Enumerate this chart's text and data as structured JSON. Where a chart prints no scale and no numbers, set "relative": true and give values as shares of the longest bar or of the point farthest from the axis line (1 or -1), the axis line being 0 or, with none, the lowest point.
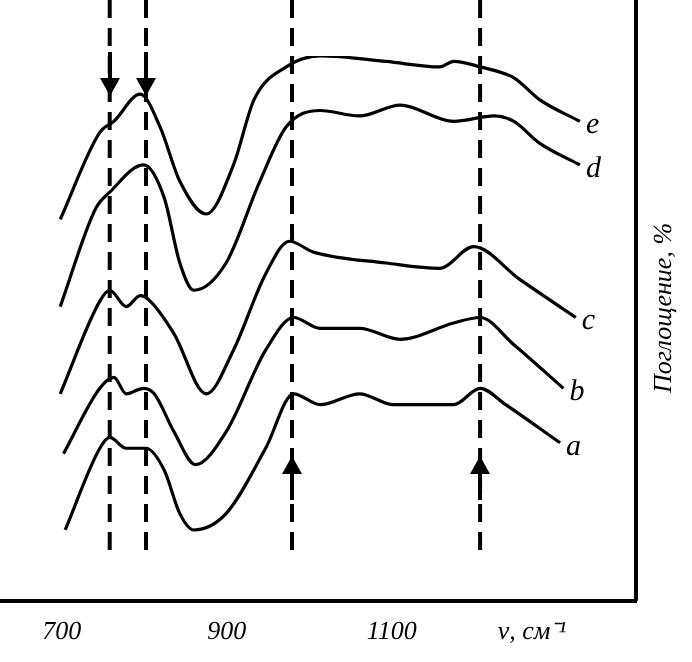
{
  "chart_data": {
    "type": "line",
    "relative": true,
    "xlabel": "ν, см⁻¹",
    "ylabel": "Поглощение, %",
    "xlim": [
      625,
      1396
    ],
    "xticks": [
      700,
      900,
      1100
    ],
    "legend": false,
    "grid": false,
    "marker": "none",
    "series": [
      {
        "name": "e",
        "color": "#000000",
        "x": [
          698,
          746,
          763,
          795,
          819,
          843,
          875,
          908,
          933,
          972,
          1013,
          1093,
          1158,
          1175,
          1207,
          1248,
          1279,
          1328
        ],
        "values": [
          0.7,
          0.86,
          0.88,
          0.93,
          0.87,
          0.77,
          0.71,
          0.8,
          0.92,
          0.98,
          1.0,
          0.99,
          0.98,
          0.99,
          0.98,
          0.96,
          0.92,
          0.88
        ]
      },
      {
        "name": "d",
        "color": "#000000",
        "x": [
          698,
          741,
          758,
          799,
          824,
          843,
          860,
          899,
          940,
          972,
          1013,
          1061,
          1110,
          1175,
          1224,
          1248,
          1279,
          1328
        ],
        "values": [
          0.54,
          0.72,
          0.75,
          0.8,
          0.74,
          0.62,
          0.57,
          0.62,
          0.77,
          0.87,
          0.9,
          0.89,
          0.91,
          0.88,
          0.89,
          0.88,
          0.84,
          0.8
        ]
      },
      {
        "name": "c",
        "color": "#000000",
        "x": [
          698,
          746,
          758,
          778,
          795,
          807,
          836,
          875,
          908,
          947,
          976,
          1005,
          1093,
          1158,
          1199,
          1255,
          1323
        ],
        "values": [
          0.38,
          0.55,
          0.57,
          0.54,
          0.56,
          0.55,
          0.49,
          0.38,
          0.46,
          0.6,
          0.66,
          0.64,
          0.62,
          0.61,
          0.65,
          0.59,
          0.52
        ]
      },
      {
        "name": "b",
        "color": "#000000",
        "x": [
          702,
          746,
          763,
          778,
          799,
          812,
          836,
          862,
          899,
          947,
          981,
          1013,
          1061,
          1110,
          1175,
          1207,
          1248,
          1308
        ],
        "values": [
          0.27,
          0.39,
          0.41,
          0.38,
          0.39,
          0.38,
          0.31,
          0.25,
          0.31,
          0.46,
          0.52,
          0.5,
          0.5,
          0.48,
          0.51,
          0.52,
          0.47,
          0.39
        ]
      },
      {
        "name": "a",
        "color": "#000000",
        "x": [
          704,
          746,
          758,
          778,
          802,
          824,
          843,
          860,
          899,
          947,
          981,
          1013,
          1061,
          1102,
          1175,
          1207,
          1238,
          1304
        ],
        "values": [
          0.13,
          0.28,
          0.3,
          0.28,
          0.28,
          0.24,
          0.16,
          0.13,
          0.16,
          0.28,
          0.38,
          0.36,
          0.38,
          0.36,
          0.36,
          0.39,
          0.36,
          0.29
        ]
      }
    ],
    "ref_lines": [
      {
        "axis": "x",
        "value": 758,
        "line_style": "dashed"
      },
      {
        "axis": "x",
        "value": 802,
        "line_style": "dashed"
      },
      {
        "axis": "x",
        "value": 979,
        "line_style": "dashed"
      },
      {
        "axis": "x",
        "value": 1207,
        "line_style": "dashed"
      }
    ]
  }
}
